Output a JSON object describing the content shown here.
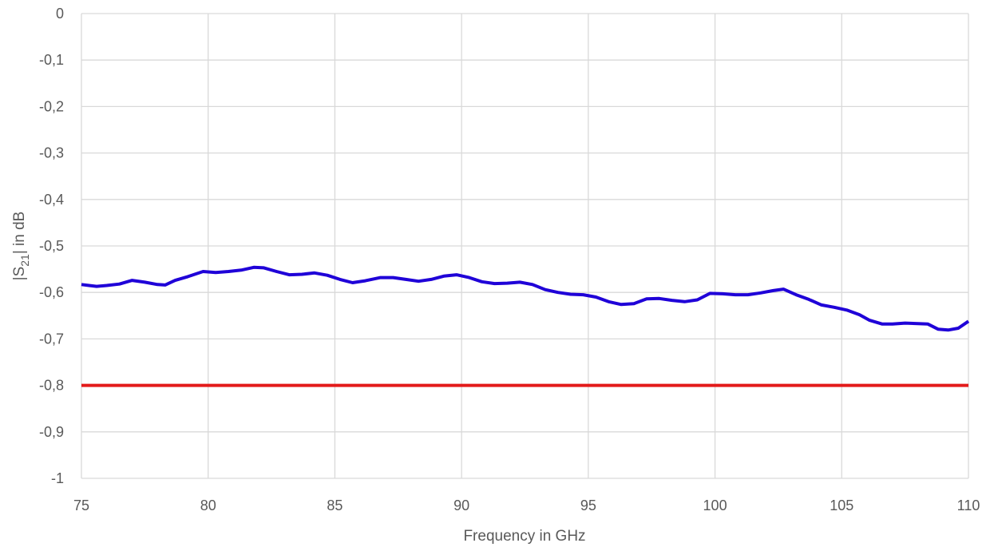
{
  "chart_data": {
    "type": "line",
    "title": "",
    "xlabel": "Frequency in GHz",
    "ylabel": {
      "prefix": "|S",
      "subscript": "21",
      "suffix": "| in dB"
    },
    "xlim": [
      75,
      110
    ],
    "ylim": [
      -1,
      0
    ],
    "x_ticks": [
      75,
      80,
      85,
      90,
      95,
      100,
      105,
      110
    ],
    "x_tick_labels": [
      "75",
      "80",
      "85",
      "90",
      "95",
      "100",
      "105",
      "110"
    ],
    "y_ticks": [
      0,
      -0.1,
      -0.2,
      -0.3,
      -0.4,
      -0.5,
      -0.6,
      -0.7,
      -0.8,
      -0.9,
      -1
    ],
    "y_tick_labels": [
      "0",
      "-0,1",
      "-0,2",
      "-0,3",
      "-0,4",
      "-0,5",
      "-0,6",
      "-0,7",
      "-0,8",
      "-0,9",
      "-1"
    ],
    "grid": true,
    "series": [
      {
        "color": "#1f00d8",
        "x": [
          75,
          75.3,
          75.6,
          76,
          76.5,
          77,
          77.5,
          78,
          78.3,
          78.7,
          79.2,
          79.8,
          80.3,
          80.8,
          81.3,
          81.8,
          82.2,
          82.7,
          83.2,
          83.7,
          84.2,
          84.7,
          85.2,
          85.7,
          86.2,
          86.8,
          87.3,
          87.8,
          88.3,
          88.8,
          89.3,
          89.8,
          90.3,
          90.8,
          91.3,
          91.8,
          92.3,
          92.8,
          93.3,
          93.8,
          94.3,
          94.8,
          95.3,
          95.8,
          96.3,
          96.8,
          97.3,
          97.8,
          98.3,
          98.8,
          99.3,
          99.8,
          100.3,
          100.8,
          101.3,
          101.8,
          102.3,
          102.7,
          103.2,
          103.7,
          104.2,
          104.7,
          105.2,
          105.7,
          106.1,
          106.6,
          107,
          107.5,
          108,
          108.4,
          108.8,
          109.2,
          109.6,
          110
        ],
        "y": [
          -0.583,
          -0.585,
          -0.587,
          -0.585,
          -0.582,
          -0.574,
          -0.578,
          -0.583,
          -0.584,
          -0.574,
          -0.566,
          -0.555,
          -0.557,
          -0.555,
          -0.552,
          -0.546,
          -0.547,
          -0.555,
          -0.562,
          -0.561,
          -0.558,
          -0.563,
          -0.572,
          -0.579,
          -0.575,
          -0.568,
          -0.568,
          -0.572,
          -0.576,
          -0.572,
          -0.565,
          -0.562,
          -0.568,
          -0.577,
          -0.581,
          -0.58,
          -0.578,
          -0.583,
          -0.594,
          -0.6,
          -0.604,
          -0.605,
          -0.61,
          -0.62,
          -0.626,
          -0.624,
          -0.614,
          -0.613,
          -0.617,
          -0.62,
          -0.616,
          -0.602,
          -0.603,
          -0.605,
          -0.605,
          -0.601,
          -0.596,
          -0.593,
          -0.605,
          -0.615,
          -0.627,
          -0.632,
          -0.638,
          -0.648,
          -0.66,
          -0.668,
          -0.668,
          -0.666,
          -0.667,
          -0.668,
          -0.679,
          -0.681,
          -0.677,
          -0.662
        ]
      },
      {
        "color": "#e31b1b",
        "x": [
          75,
          110
        ],
        "y": [
          -0.8,
          -0.8
        ]
      }
    ]
  }
}
